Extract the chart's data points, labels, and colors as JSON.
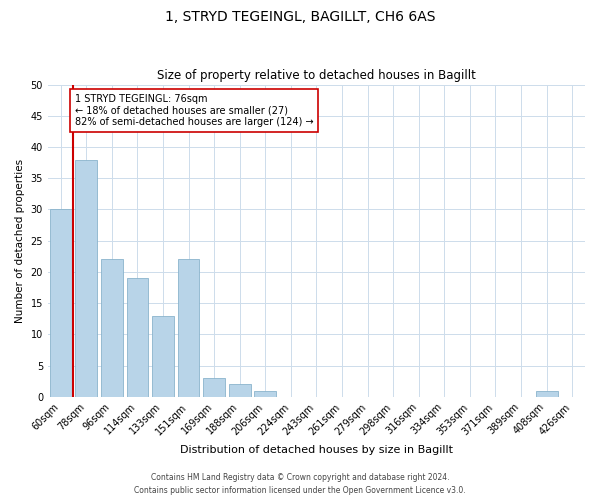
{
  "title": "1, STRYD TEGEINGL, BAGILLT, CH6 6AS",
  "subtitle": "Size of property relative to detached houses in Bagillt",
  "xlabel": "Distribution of detached houses by size in Bagillt",
  "ylabel": "Number of detached properties",
  "bar_color": "#b8d4e8",
  "bar_edge_color": "#8ab4cc",
  "bin_labels": [
    "60sqm",
    "78sqm",
    "96sqm",
    "114sqm",
    "133sqm",
    "151sqm",
    "169sqm",
    "188sqm",
    "206sqm",
    "224sqm",
    "243sqm",
    "261sqm",
    "279sqm",
    "298sqm",
    "316sqm",
    "334sqm",
    "353sqm",
    "371sqm",
    "389sqm",
    "408sqm",
    "426sqm"
  ],
  "bar_heights": [
    30,
    38,
    22,
    19,
    13,
    22,
    3,
    2,
    1,
    0,
    0,
    0,
    0,
    0,
    0,
    0,
    0,
    0,
    0,
    1,
    0
  ],
  "red_line_index": 0,
  "annotation_text": "1 STRYD TEGEINGL: 76sqm\n← 18% of detached houses are smaller (27)\n82% of semi-detached houses are larger (124) →",
  "annotation_box_color": "#ffffff",
  "annotation_box_edge_color": "#cc0000",
  "ylim": [
    0,
    50
  ],
  "yticks": [
    0,
    5,
    10,
    15,
    20,
    25,
    30,
    35,
    40,
    45,
    50
  ],
  "footer_line1": "Contains HM Land Registry data © Crown copyright and database right 2024.",
  "footer_line2": "Contains public sector information licensed under the Open Government Licence v3.0.",
  "red_line_color": "#cc0000",
  "grid_color": "#cddceb",
  "figwidth": 6.0,
  "figheight": 5.0,
  "dpi": 100
}
